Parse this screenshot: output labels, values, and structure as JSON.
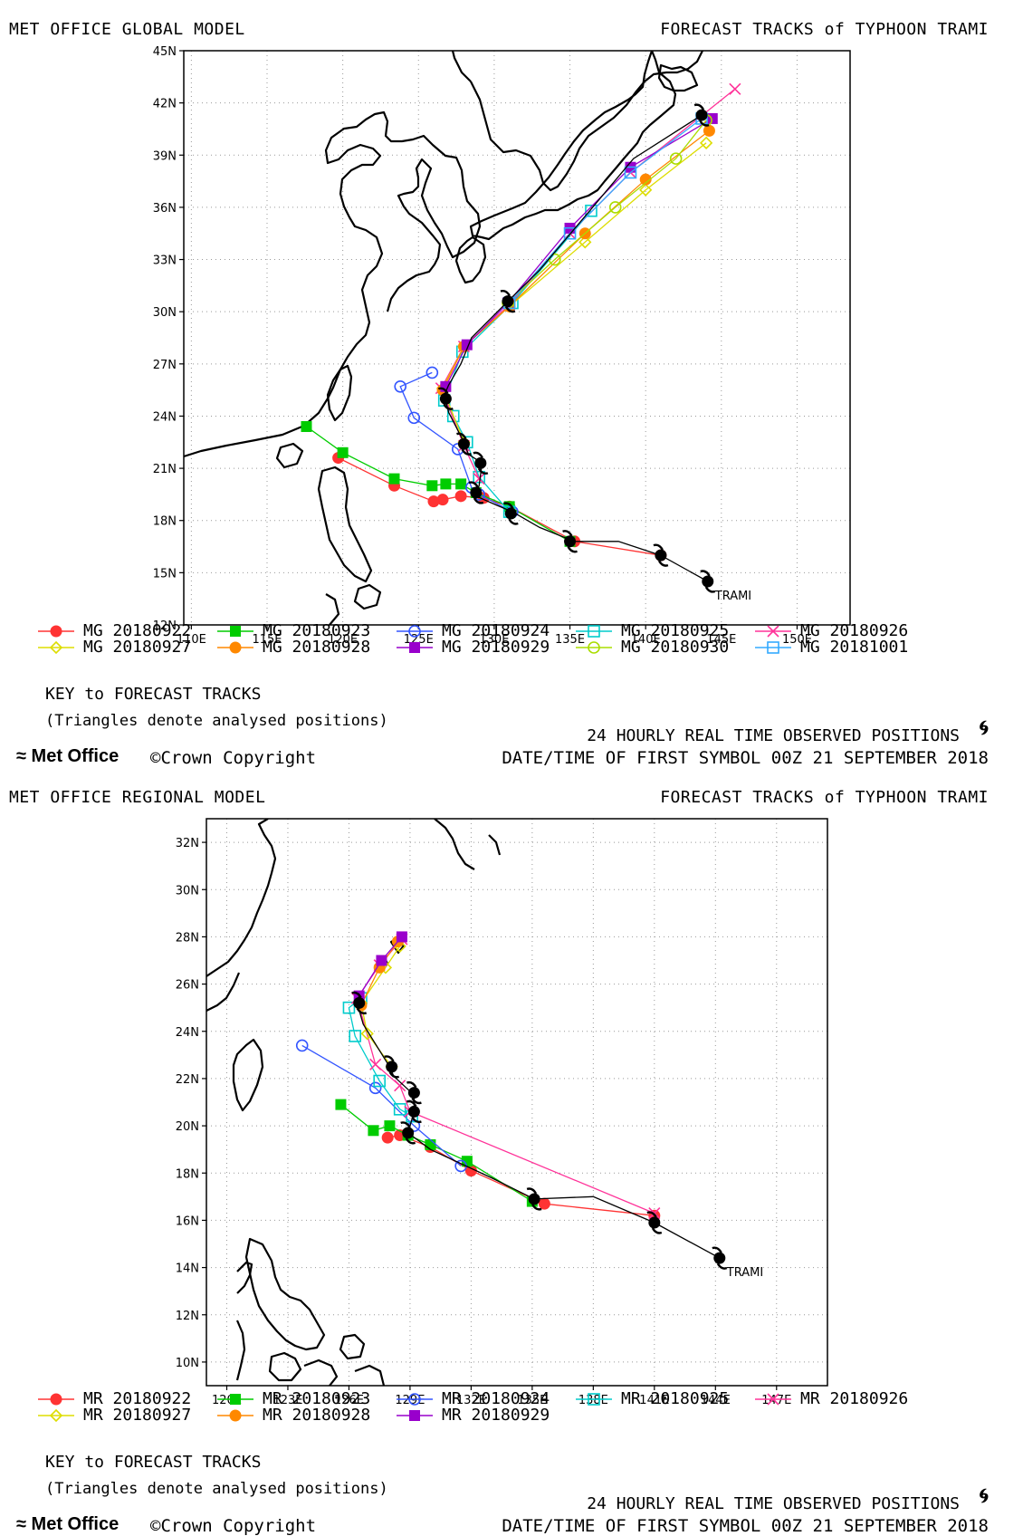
{
  "chart_data": [
    {
      "type": "line",
      "model_title": "MET OFFICE GLOBAL MODEL",
      "title": "FORECAST TRACKS of TYPHOON TRAMI",
      "x_ticks": [
        "110E",
        "115E",
        "120E",
        "125E",
        "130E",
        "135E",
        "140E",
        "145E",
        "150E"
      ],
      "y_ticks": [
        "12N",
        "15N",
        "18N",
        "21N",
        "24N",
        "27N",
        "30N",
        "33N",
        "36N",
        "39N",
        "42N",
        "45N"
      ],
      "xlim": [
        109.5,
        153.5
      ],
      "ylim": [
        12,
        45
      ],
      "grid": true,
      "storm_label": "TRAMI",
      "observed_track": [
        [
          144.1,
          14.5
        ],
        [
          141.0,
          16.0
        ],
        [
          138.2,
          16.8
        ],
        [
          135.3,
          16.8
        ],
        [
          133.0,
          17.6
        ],
        [
          131.2,
          18.5
        ],
        [
          130.1,
          18.9
        ],
        [
          128.8,
          19.4
        ],
        [
          129.0,
          20.0
        ],
        [
          129.2,
          21.3
        ],
        [
          128.3,
          21.8
        ],
        [
          128.0,
          22.5
        ],
        [
          127.0,
          24.2
        ],
        [
          126.7,
          25.2
        ],
        [
          127.0,
          25.8
        ],
        [
          127.8,
          27.0
        ],
        [
          128.5,
          28.5
        ],
        [
          130.9,
          30.6
        ],
        [
          133.0,
          32.4
        ],
        [
          136.5,
          36.0
        ],
        [
          139.2,
          38.8
        ],
        [
          143.7,
          41.3
        ]
      ],
      "observed_symbols": [
        [
          144.1,
          14.5
        ],
        [
          141.0,
          16.0
        ],
        [
          135.0,
          16.8
        ],
        [
          131.1,
          18.4
        ],
        [
          128.8,
          19.6
        ],
        [
          129.1,
          21.3
        ],
        [
          128.0,
          22.4
        ],
        [
          126.8,
          25.0
        ],
        [
          130.9,
          30.6
        ],
        [
          143.7,
          41.3
        ]
      ],
      "series": [
        {
          "name": "MG 20180922",
          "color": "#ff3333",
          "marker": "dot",
          "x": [
            141.0,
            135.3,
            131.0,
            129.3,
            127.8,
            126.6,
            126.0,
            123.4,
            119.7
          ],
          "y": [
            16.0,
            16.8,
            18.8,
            19.3,
            19.4,
            19.2,
            19.1,
            20.0,
            21.6
          ]
        },
        {
          "name": "MG 20180923",
          "color": "#00cc00",
          "marker": "square",
          "x": [
            135.0,
            131.0,
            128.8,
            127.8,
            126.8,
            125.9,
            123.4,
            120.0,
            117.6
          ],
          "y": [
            16.8,
            18.8,
            19.6,
            20.1,
            20.1,
            20.0,
            20.4,
            21.9,
            23.4
          ]
        },
        {
          "name": "MG 20180924",
          "color": "#3355ff",
          "marker": "circle",
          "x": [
            131.2,
            129.0,
            128.5,
            127.6,
            124.7,
            123.8,
            125.9
          ],
          "y": [
            18.5,
            19.5,
            19.9,
            22.1,
            23.9,
            25.7,
            26.5
          ]
        },
        {
          "name": "MG 20180925",
          "color": "#00cccc",
          "marker": "square-open",
          "x": [
            131.0,
            129.0,
            128.2,
            127.3,
            126.7,
            127.9,
            131.2,
            136.4
          ],
          "y": [
            18.5,
            20.5,
            22.5,
            24.0,
            24.9,
            27.7,
            30.5,
            35.8
          ]
        },
        {
          "name": "MG 20180926",
          "color": "#ff3399",
          "marker": "cross",
          "x": [
            129.0,
            128.0,
            126.5,
            128.0,
            131.0,
            135.0,
            139.0,
            145.9
          ],
          "y": [
            20.4,
            22.3,
            25.6,
            28.0,
            30.4,
            34.5,
            38.0,
            42.8
          ]
        },
        {
          "name": "MG 20180927",
          "color": "#dddd00",
          "marker": "diamond",
          "x": [
            128.0,
            126.6,
            128.0,
            131.0,
            136.0,
            140.0,
            144.0
          ],
          "y": [
            22.5,
            25.6,
            28.0,
            30.3,
            34.0,
            37.0,
            39.7
          ]
        },
        {
          "name": "MG 20180928",
          "color": "#ff8800",
          "marker": "dot",
          "x": [
            126.6,
            128.0,
            131.0,
            136.0,
            140.0,
            144.2
          ],
          "y": [
            25.5,
            28.0,
            30.3,
            34.5,
            37.6,
            40.4
          ]
        },
        {
          "name": "MG 20180929",
          "color": "#9900cc",
          "marker": "square",
          "x": [
            126.8,
            128.2,
            130.9,
            135.0,
            139.0,
            144.4
          ],
          "y": [
            25.7,
            28.1,
            30.5,
            34.8,
            38.3,
            41.1
          ]
        },
        {
          "name": "MG 20180930",
          "color": "#aadd00",
          "marker": "circle",
          "x": [
            130.9,
            134.0,
            138.0,
            142.0,
            144.0
          ],
          "y": [
            30.5,
            33.0,
            36.0,
            38.8,
            41.0
          ]
        },
        {
          "name": "MG 20181001",
          "color": "#33aaff",
          "marker": "square-open",
          "x": [
            131.0,
            135.0,
            139.0,
            143.7
          ],
          "y": [
            30.5,
            34.5,
            38.0,
            41.1
          ]
        }
      ],
      "legend": {
        "items": [
          "MG 20180922",
          "MG 20180923",
          "MG 20180924",
          "MG 20180925",
          "MG 20180926",
          "MG 20180927",
          "MG 20180928",
          "MG 20180929",
          "MG 20180930",
          "MG 20181001"
        ],
        "key_title": "KEY to FORECAST TRACKS",
        "key_note": "(Triangles denote analysed positions)"
      },
      "observed_label": "24 HOURLY REAL TIME OBSERVED POSITIONS",
      "brand": "Met Office",
      "copyright": "©Crown Copyright",
      "first_symbol": "DATE/TIME OF FIRST SYMBOL 00Z 21 SEPTEMBER 2018"
    },
    {
      "type": "line",
      "model_title": "MET OFFICE REGIONAL MODEL",
      "title": "FORECAST TRACKS of TYPHOON TRAMI",
      "x_ticks": [
        "120E",
        "123E",
        "126E",
        "129E",
        "132E",
        "135E",
        "138E",
        "141E",
        "144E",
        "147E"
      ],
      "y_ticks": [
        "10N",
        "12N",
        "14N",
        "16N",
        "18N",
        "20N",
        "22N",
        "24N",
        "26N",
        "28N",
        "30N",
        "32N"
      ],
      "xlim": [
        119.0,
        149.5
      ],
      "ylim": [
        9,
        33
      ],
      "grid": true,
      "storm_label": "TRAMI",
      "observed_track": [
        [
          144.2,
          14.4
        ],
        [
          141.0,
          15.9
        ],
        [
          138.0,
          17.0
        ],
        [
          135.1,
          16.9
        ],
        [
          133.0,
          17.8
        ],
        [
          131.5,
          18.4
        ],
        [
          130.0,
          19.0
        ],
        [
          128.9,
          19.7
        ],
        [
          129.2,
          20.6
        ],
        [
          129.2,
          21.3
        ],
        [
          128.2,
          22.1
        ],
        [
          128.0,
          22.5
        ],
        [
          126.7,
          24.3
        ],
        [
          126.4,
          25.2
        ],
        [
          126.5,
          25.5
        ]
      ],
      "observed_symbols": [
        [
          144.2,
          14.4
        ],
        [
          141.0,
          15.9
        ],
        [
          135.1,
          16.9
        ],
        [
          128.9,
          19.7
        ],
        [
          129.2,
          20.6
        ],
        [
          129.2,
          21.4
        ],
        [
          128.1,
          22.5
        ],
        [
          126.5,
          25.2
        ]
      ],
      "series": [
        {
          "name": "MR 20180922",
          "color": "#ff3333",
          "marker": "dot",
          "x": [
            141.0,
            135.6,
            132.0,
            130.0,
            128.5,
            127.9
          ],
          "y": [
            16.2,
            16.7,
            18.1,
            19.1,
            19.6,
            19.5
          ]
        },
        {
          "name": "MR 20180923",
          "color": "#00cc00",
          "marker": "square",
          "x": [
            135.0,
            131.8,
            130.0,
            128.9,
            128.0,
            127.2,
            125.6
          ],
          "y": [
            16.8,
            18.5,
            19.2,
            19.6,
            20.0,
            19.8,
            20.9
          ]
        },
        {
          "name": "MR 20180924",
          "color": "#3355ff",
          "marker": "circle",
          "x": [
            131.5,
            129.2,
            127.3,
            123.7
          ],
          "y": [
            18.3,
            20.0,
            21.6,
            23.4
          ]
        },
        {
          "name": "MR 20180925",
          "color": "#00cccc",
          "marker": "square-open",
          "x": [
            129.1,
            128.5,
            127.5,
            126.3,
            126.0,
            126.6
          ],
          "y": [
            20.4,
            20.7,
            21.9,
            23.8,
            25.0,
            25.4
          ]
        },
        {
          "name": "MR 20180926",
          "color": "#ff3399",
          "marker": "cross",
          "x": [
            141.0,
            129.0,
            128.5,
            127.3,
            126.4,
            127.5,
            128.6
          ],
          "y": [
            16.3,
            20.6,
            21.7,
            22.6,
            25.4,
            26.8,
            27.9
          ]
        },
        {
          "name": "MR 20180927",
          "color": "#dddd00",
          "marker": "diamond",
          "x": [
            128.1,
            126.9,
            126.6,
            127.8,
            128.5
          ],
          "y": [
            22.5,
            23.9,
            25.2,
            26.7,
            27.6
          ]
        },
        {
          "name": "MR 20180928",
          "color": "#ff8800",
          "marker": "dot",
          "x": [
            126.6,
            127.5,
            128.4
          ],
          "y": [
            25.1,
            26.7,
            27.8
          ]
        },
        {
          "name": "MR 20180929",
          "color": "#9900cc",
          "marker": "square",
          "x": [
            126.5,
            127.6,
            128.6
          ],
          "y": [
            25.5,
            27.0,
            28.0
          ]
        }
      ],
      "legend": {
        "items": [
          "MR 20180922",
          "MR 20180923",
          "MR 20180924",
          "MR 20180925",
          "MR 20180926",
          "MR 20180927",
          "MR 20180928",
          "MR 20180929"
        ],
        "key_title": "KEY to FORECAST TRACKS",
        "key_note": "(Triangles denote analysed positions)"
      },
      "observed_label": "24 HOURLY REAL TIME OBSERVED POSITIONS",
      "brand": "Met Office",
      "copyright": "©Crown Copyright",
      "first_symbol": "DATE/TIME OF FIRST SYMBOL 00Z 21 SEPTEMBER 2018"
    }
  ]
}
